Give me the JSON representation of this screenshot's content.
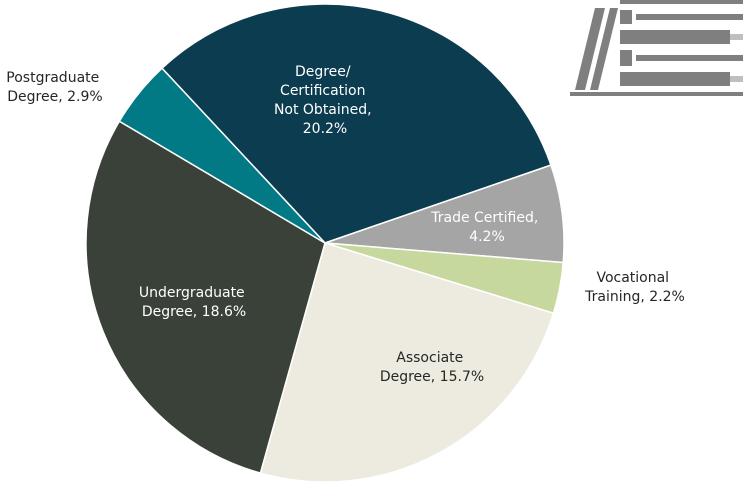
{
  "chart_data": {
    "type": "pie",
    "values": [
      20.2,
      4.2,
      2.2,
      15.7,
      18.6,
      2.9
    ],
    "value_labels": [
      "Degree/ Certification Not Obtained, 20.2%",
      "Trade Certified, 4.2%",
      "Vocational Training, 2.2%",
      "Associate Degree, 15.7%",
      "Undergraduate Degree, 18.6%",
      "Postgraduate Degree, 2.9%"
    ],
    "colors": [
      "#0b3c50",
      "#a5a5a5",
      "#c6d89d",
      "#edebe0",
      "#394139",
      "#027a86"
    ]
  }
}
